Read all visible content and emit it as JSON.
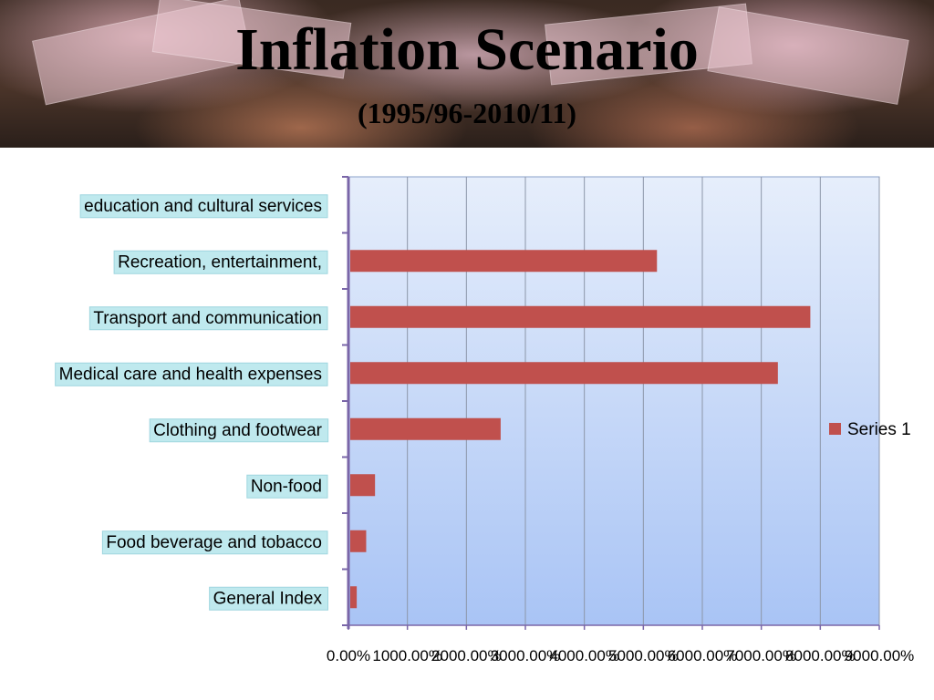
{
  "header": {
    "title": "Inflation Scenario",
    "subtitle": "(1995/96-2010/11)"
  },
  "colors": {
    "bar": "#c0504d",
    "plot_top": "#e6eefb",
    "plot_bottom": "#a9c4f5",
    "axis": "#7a66a8",
    "label_box": "#bfe9ee"
  },
  "chart_data": {
    "type": "bar",
    "orientation": "horizontal",
    "categories": [
      "education and cultural services",
      "Recreation, entertainment,",
      "Transport and communication",
      "Medical care and health expenses",
      "Clothing and footwear",
      "Non-food",
      "Food beverage and tobacco",
      "General Index"
    ],
    "series": [
      {
        "name": "Series 1",
        "values": [
          0,
          5200,
          7800,
          7250,
          2550,
          420,
          270,
          110
        ]
      }
    ],
    "xlim": [
      0,
      9000
    ],
    "x_tick_labels": [
      "0.00%",
      "1000.00%",
      "2000.00%",
      "3000.00%",
      "4000.00%",
      "5000.00%",
      "6000.00%",
      "7000.00%",
      "8000.00%",
      "9000.00%"
    ],
    "grid": true,
    "legend_position": "right"
  }
}
